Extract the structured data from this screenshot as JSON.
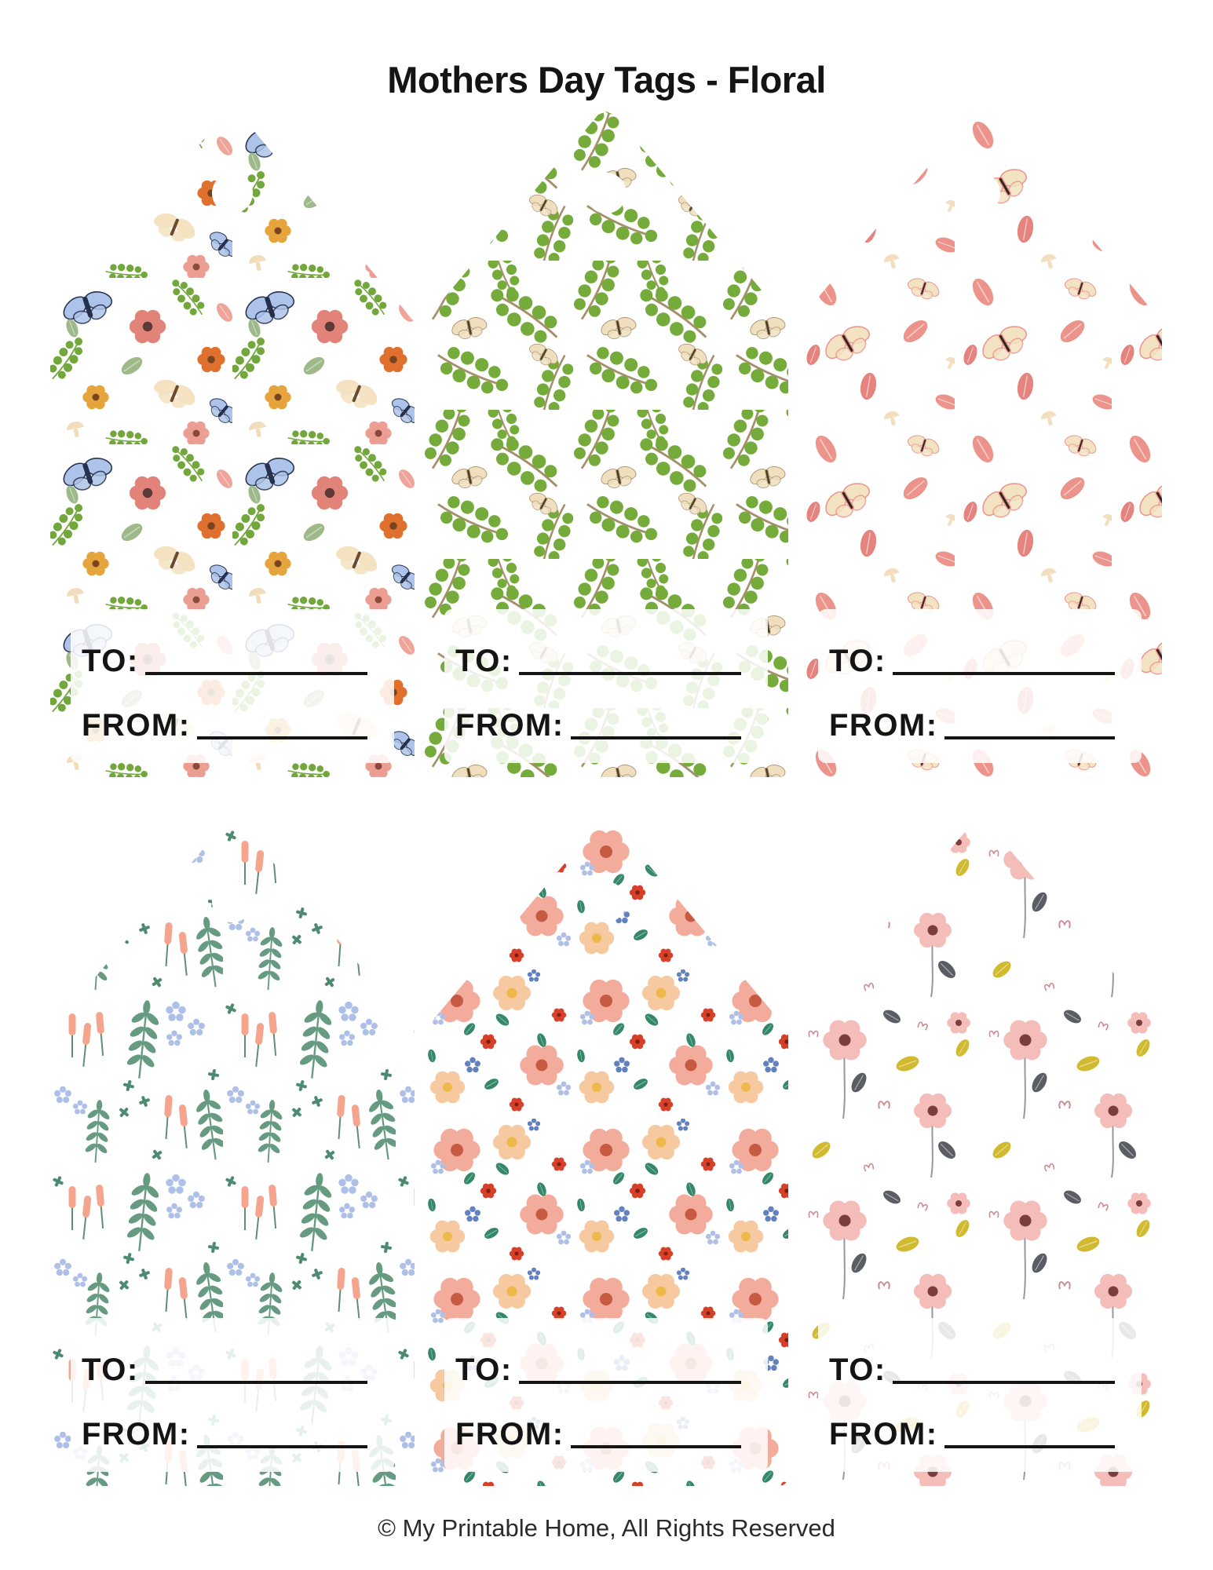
{
  "title": "Mothers Day Tags - Floral",
  "footer": "© My Printable Home, All Rights Reserved",
  "colors": {
    "page_bg": "#FFFFFF",
    "title_text": "#141414",
    "label_text": "#141414",
    "write_line": "#141414",
    "footer_text": "#2B2B2B",
    "band_overlay": "rgba(255,255,255,0.86)"
  },
  "tags": [
    {
      "var": "t1",
      "design": "butterflies-and-wildflowers",
      "pattern": "p1",
      "to_label": "TO:",
      "from_label": "FROM:",
      "palette": {
        "blue": "#ADC3E9",
        "bluedark": "#25304E",
        "cream": "#F4E2C0",
        "salmon": "#E2837A",
        "orange": "#DF702E",
        "gold": "#E6A43C",
        "pink": "#EC9E93",
        "green": "#72A73C",
        "sage": "#9FBA8A",
        "pinkleaf": "#EFA49A",
        "mushroom": "#F1DCBC"
      }
    },
    {
      "var": "t2",
      "design": "green-vines-and-cream-moths",
      "pattern": "p2",
      "to_label": "TO:",
      "from_label": "FROM:",
      "palette": {
        "green": "#75AB3B",
        "stem": "#A5906B",
        "cream": "#F0DFBE",
        "body": "#4F3E26"
      }
    },
    {
      "var": "t3",
      "design": "pink-leaves-and-butterflies",
      "pattern": "p3",
      "to_label": "TO:",
      "from_label": "FROM:",
      "palette": {
        "rose": "#EC948B",
        "rosedark": "#E5837F",
        "cream": "#F4E3C2",
        "beige": "#F2DFC0",
        "body": "#2E2821"
      }
    },
    {
      "var": "t4",
      "design": "meadow-cattails-and-blue-blossoms",
      "pattern": "p4",
      "to_label": "TO:",
      "from_label": "FROM:",
      "palette": {
        "salmon": "#F5A48D",
        "blue": "#AEBFE8",
        "green": "#4C8B6F",
        "sage": "#679B81",
        "stem": "#5E8F75"
      }
    },
    {
      "var": "t5",
      "design": "peach-ditsy-floral",
      "pattern": "p5",
      "to_label": "TO:",
      "from_label": "FROM:",
      "palette": {
        "salmon": "#F3AB9B",
        "peach": "#F6C9A0",
        "red": "#D63F28",
        "blue": "#6282BF",
        "lightblue": "#AFBFE5",
        "green": "#348767",
        "yellow": "#EDB94A"
      }
    },
    {
      "var": "t6",
      "design": "pink-poppies-yellow-gray-leaves",
      "pattern": "p6",
      "to_label": "TO:",
      "from_label": "FROM:",
      "palette": {
        "pink": "#F4BDBA",
        "center": "#7B3D3D",
        "gray": "#5B5D64",
        "yellow": "#D1BA30",
        "stem": "#97999F",
        "heart": "#CE8A92"
      }
    }
  ]
}
